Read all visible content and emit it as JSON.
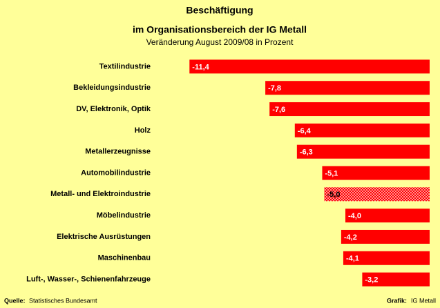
{
  "chart_data": {
    "type": "bar",
    "orientation": "horizontal",
    "title": [
      "Beschäftigung",
      "im Organisationsbereich der IG Metall"
    ],
    "subtitle": "Veränderung August 2009/08 in Prozent",
    "categories": [
      "Textilindustrie",
      "Bekleidungsindustrie",
      "DV, Elektronik, Optik",
      "Holz",
      "Metallerzeugnisse",
      "Automobilindustrie",
      "Metall- und Elektroindustrie",
      "Möbelindustrie",
      "Elektrische Ausrüstungen",
      "Maschinenbau",
      "Luft-, Wasser-, Schienenfahrzeuge"
    ],
    "values": [
      -11.4,
      -7.8,
      -7.6,
      -6.4,
      -6.3,
      -5.1,
      -5.0,
      -4.0,
      -4.2,
      -4.1,
      -3.2
    ],
    "value_labels": [
      "-11,4",
      "-7,8",
      "-7,6",
      "-6,4",
      "-6,3",
      "-5,1",
      "-5,0",
      "-4,0",
      "-4,2",
      "-4,1",
      "-3,2"
    ],
    "color": "#ff0000",
    "highlight_index": 6,
    "xlim": [
      -12,
      0
    ],
    "source_label": "Quelle:",
    "source": "Statistisches Bundesamt",
    "credit_label": "Grafik:",
    "credit": "IG Metall"
  }
}
